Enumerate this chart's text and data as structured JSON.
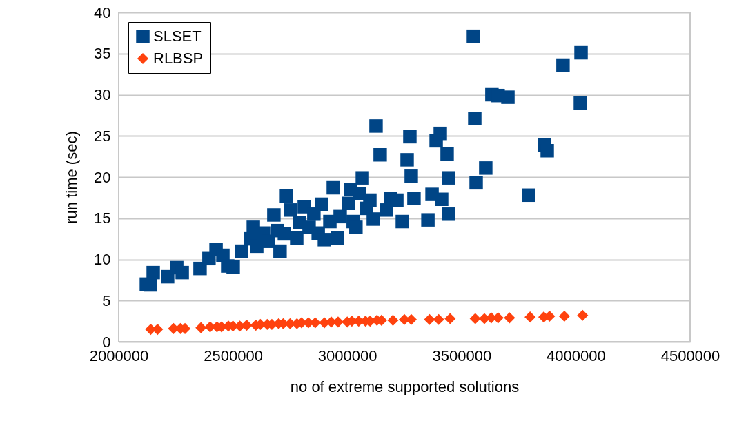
{
  "chart_data": {
    "type": "scatter",
    "xlabel": "no of extreme supported solutions",
    "ylabel": "run time (sec)",
    "xlim": [
      2000000,
      4500000
    ],
    "xticks": [
      2000000,
      2500000,
      3000000,
      3500000,
      4000000,
      4500000
    ],
    "ylim": [
      0,
      40
    ],
    "yticks": [
      0,
      5,
      10,
      15,
      20,
      25,
      30,
      35,
      40
    ],
    "grid": "y",
    "legend": "top left",
    "series": [
      {
        "name": "SLSET",
        "color": "#004586",
        "marker": "square",
        "x": [
          2121000,
          2139000,
          2151000,
          2214000,
          2254000,
          2278000,
          2356000,
          2395000,
          2426000,
          2456000,
          2477000,
          2501000,
          2537000,
          2577000,
          2589000,
          2604000,
          2634000,
          2655000,
          2679000,
          2694000,
          2706000,
          2725000,
          2734000,
          2752000,
          2779000,
          2791000,
          2812000,
          2833000,
          2854000,
          2873000,
          2888000,
          2900000,
          2924000,
          2939000,
          2957000,
          2969000,
          3005000,
          3014000,
          3026000,
          3038000,
          3054000,
          3066000,
          3084000,
          3099000,
          3114000,
          3126000,
          3144000,
          3171000,
          3190000,
          3217000,
          3241000,
          3262000,
          3274000,
          3280000,
          3292000,
          3353000,
          3371000,
          3389000,
          3407000,
          3413000,
          3437000,
          3443000,
          3443000,
          3552000,
          3558000,
          3564000,
          3606000,
          3633000,
          3660000,
          3703000,
          3793000,
          3863000,
          3875000,
          3944000,
          4020000,
          4023000
        ],
        "values": [
          7.0,
          6.9,
          8.4,
          7.9,
          9.0,
          8.4,
          8.9,
          10.1,
          11.2,
          10.5,
          9.2,
          9.1,
          11.0,
          12.5,
          13.9,
          11.6,
          13.2,
          12.2,
          15.4,
          13.5,
          11.0,
          13.1,
          17.7,
          16.0,
          12.6,
          14.5,
          16.4,
          13.9,
          15.5,
          13.2,
          16.7,
          12.4,
          14.6,
          18.7,
          12.6,
          15.2,
          16.8,
          18.5,
          14.6,
          13.9,
          18.0,
          19.9,
          16.2,
          17.2,
          14.9,
          26.2,
          22.7,
          16.0,
          17.4,
          17.2,
          14.6,
          22.1,
          24.9,
          20.1,
          17.4,
          14.8,
          17.9,
          24.4,
          25.3,
          17.3,
          22.8,
          19.9,
          15.5,
          37.1,
          27.1,
          19.3,
          21.1,
          30.0,
          29.9,
          29.7,
          17.8,
          23.9,
          23.2,
          33.6,
          29.0,
          35.1
        ]
      },
      {
        "name": "RLBSP",
        "color": "#ff420e",
        "marker": "diamond",
        "x": [
          2140000,
          2170000,
          2240000,
          2270000,
          2290000,
          2360000,
          2400000,
          2430000,
          2450000,
          2480000,
          2500000,
          2530000,
          2560000,
          2600000,
          2620000,
          2650000,
          2670000,
          2700000,
          2720000,
          2750000,
          2780000,
          2800000,
          2830000,
          2860000,
          2900000,
          2930000,
          2960000,
          3000000,
          3020000,
          3050000,
          3080000,
          3100000,
          3130000,
          3150000,
          3200000,
          3250000,
          3280000,
          3360000,
          3400000,
          3450000,
          3560000,
          3600000,
          3630000,
          3660000,
          3710000,
          3800000,
          3860000,
          3885000,
          3950000,
          4030000
        ],
        "values": [
          1.5,
          1.5,
          1.6,
          1.6,
          1.6,
          1.7,
          1.8,
          1.8,
          1.8,
          1.9,
          1.9,
          1.9,
          2.0,
          2.0,
          2.1,
          2.1,
          2.1,
          2.2,
          2.2,
          2.2,
          2.2,
          2.3,
          2.3,
          2.3,
          2.3,
          2.4,
          2.4,
          2.4,
          2.5,
          2.5,
          2.5,
          2.5,
          2.6,
          2.6,
          2.6,
          2.7,
          2.7,
          2.7,
          2.7,
          2.8,
          2.8,
          2.8,
          2.9,
          2.9,
          2.9,
          3.0,
          3.0,
          3.1,
          3.1,
          3.2
        ]
      }
    ]
  }
}
